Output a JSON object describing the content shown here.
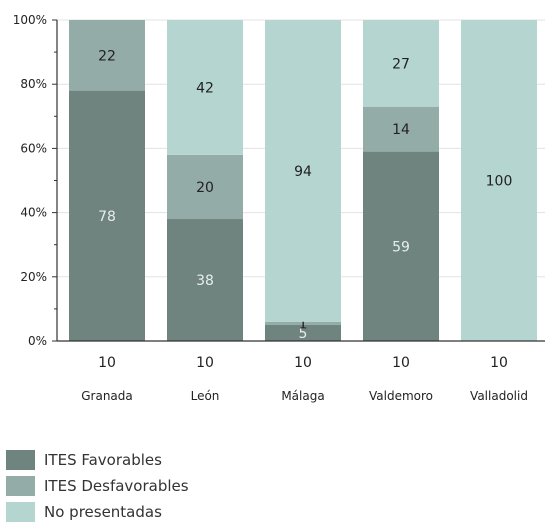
{
  "chart_data": {
    "type": "bar",
    "stacked": true,
    "percent": true,
    "categories": [
      "Granada",
      "León",
      "Málaga",
      "Valdemoro",
      "Valladolid"
    ],
    "counts": [
      "10",
      "10",
      "10",
      "10",
      "10"
    ],
    "series": [
      {
        "name": "ITES Favorables",
        "values": [
          78,
          38,
          5,
          59,
          0
        ],
        "labels": [
          "78",
          "38",
          "5",
          "59",
          ""
        ],
        "color": "#6f837f",
        "label_color": "#e6eeec"
      },
      {
        "name": "ITES Desfavorables",
        "values": [
          22,
          20,
          1,
          14,
          0
        ],
        "labels": [
          "22",
          "20",
          "1",
          "14",
          ""
        ],
        "color": "#93aca7",
        "label_color": "#222222"
      },
      {
        "name": "No presentadas",
        "values": [
          0,
          42,
          94,
          27,
          100
        ],
        "labels": [
          "",
          "42",
          "94",
          "27",
          "100"
        ],
        "color": "#b5d6d0",
        "label_color": "#222222"
      }
    ],
    "yticks": [
      "0%",
      "20%",
      "40%",
      "60%",
      "80%",
      "100%"
    ],
    "ylim": [
      0,
      100
    ],
    "grid": true,
    "legend_position": "bottom-left"
  }
}
